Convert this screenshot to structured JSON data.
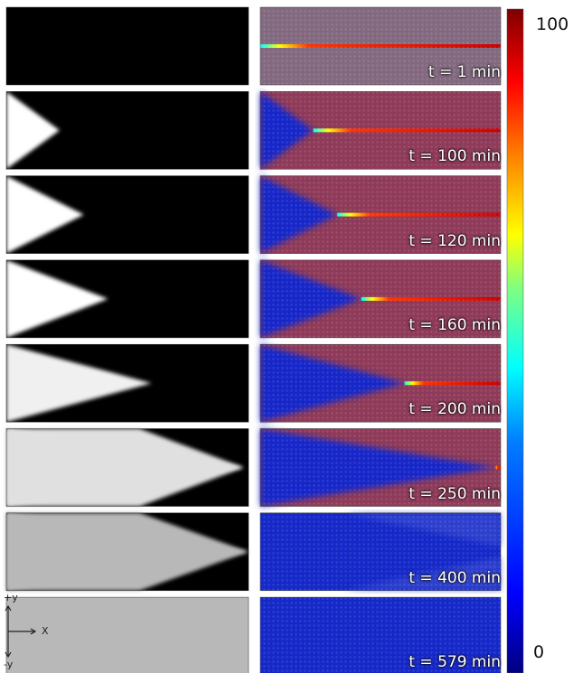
{
  "panels": [
    {
      "time_label": "t = 1 min",
      "gray": 0,
      "front": 0.0
    },
    {
      "time_label": "t = 100 min",
      "gray": 1.0,
      "front": 0.22
    },
    {
      "time_label": "t = 120 min",
      "gray": 1.0,
      "front": 0.32
    },
    {
      "time_label": "t = 160 min",
      "gray": 1.0,
      "front": 0.42
    },
    {
      "time_label": "t = 200 min",
      "gray": 0.94,
      "front": 0.6
    },
    {
      "time_label": "t = 250 min",
      "gray": 0.88,
      "front": 0.98
    },
    {
      "time_label": "t = 400 min",
      "gray": 0.72,
      "front": 1.0
    },
    {
      "time_label": "t = 579 min",
      "gray": 0.72,
      "front": 1.0
    }
  ],
  "colorbar": {
    "max_label": "100",
    "min_label": "0",
    "colors": [
      "#00007f",
      "#0000ff",
      "#007fff",
      "#00ffff",
      "#7fff7f",
      "#ffff00",
      "#ff7f00",
      "#ff0000",
      "#7f0000"
    ]
  },
  "axes": {
    "plus_y": "+y",
    "minus_y": "-y",
    "x": "X"
  },
  "colors": {
    "blue_field": "#1528c8",
    "red_field": "#8e3a58"
  }
}
